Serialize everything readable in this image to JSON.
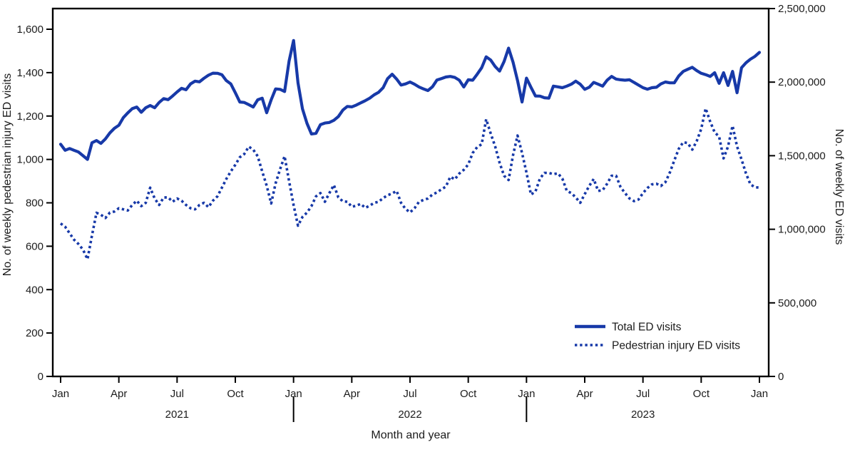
{
  "figure": {
    "line_color": "#1739a8",
    "axis_color": "#000000",
    "text_color": "#1c1c1c"
  },
  "chart_data": {
    "type": "line",
    "x_axis_title": "Month and year",
    "x_unit": "week",
    "x_range": [
      "Jan 2021",
      "Jan 2024"
    ],
    "x_ticks": [
      {
        "week": 0,
        "label": "Jan"
      },
      {
        "week": 13,
        "label": "Apr"
      },
      {
        "week": 26,
        "label": "Jul"
      },
      {
        "week": 39,
        "label": "Oct"
      },
      {
        "week": 52,
        "label": "Jan"
      },
      {
        "week": 65,
        "label": "Apr"
      },
      {
        "week": 78,
        "label": "Jul"
      },
      {
        "week": 91,
        "label": "Oct"
      },
      {
        "week": 104,
        "label": "Jan"
      },
      {
        "week": 117,
        "label": "Apr"
      },
      {
        "week": 130,
        "label": "Jul"
      },
      {
        "week": 143,
        "label": "Oct"
      },
      {
        "week": 156,
        "label": "Jan"
      }
    ],
    "year_labels": [
      {
        "week": 26,
        "label": "2021"
      },
      {
        "week": 78,
        "label": "2022"
      },
      {
        "week": 130,
        "label": "2023"
      }
    ],
    "year_separator_weeks": [
      52,
      104
    ],
    "left_axis": {
      "title": "No. of weekly pedestrian injury ED visits",
      "min": 0,
      "max": 1600,
      "tick_values": [
        0,
        200,
        400,
        600,
        800,
        1000,
        1200,
        1400,
        1600
      ],
      "tick_labels": [
        "0",
        "200",
        "400",
        "600",
        "800",
        "1,000",
        "1,200",
        "1,400",
        "1,600"
      ]
    },
    "right_axis": {
      "title": "No. of weekly ED visits",
      "min": 0,
      "max": 2500000,
      "tick_values": [
        0,
        500000,
        1000000,
        1500000,
        2000000,
        2500000
      ],
      "tick_labels": [
        "0",
        "500,000",
        "1,000,000",
        "1,500,000",
        "2,000,000",
        "2,500,000"
      ]
    },
    "legend": [
      {
        "label": "Total ED visits",
        "style": "solid"
      },
      {
        "label": "Pedestrian injury ED visits",
        "style": "dotted"
      }
    ],
    "series": [
      {
        "name": "Total ED visits",
        "axis": "right",
        "style": "solid",
        "values": [
          1578000,
          1537000,
          1549000,
          1537000,
          1525000,
          1500000,
          1475000,
          1588000,
          1603000,
          1584000,
          1614000,
          1655000,
          1686000,
          1707000,
          1758000,
          1791000,
          1820000,
          1831000,
          1795000,
          1826000,
          1841000,
          1826000,
          1862000,
          1888000,
          1881000,
          1906000,
          1933000,
          1958000,
          1948000,
          1988000,
          2007000,
          2002000,
          2026000,
          2047000,
          2061000,
          2060000,
          2050000,
          2010000,
          1988000,
          1928000,
          1865000,
          1862000,
          1847000,
          1831000,
          1880000,
          1891000,
          1792000,
          1880000,
          1954000,
          1951000,
          1936000,
          2143000,
          2283000,
          1995000,
          1818000,
          1720000,
          1648000,
          1652000,
          1711000,
          1722000,
          1726000,
          1741000,
          1766000,
          1810000,
          1835000,
          1832000,
          1844000,
          1859000,
          1874000,
          1891000,
          1914000,
          1931000,
          1962000,
          2024000,
          2054000,
          2021000,
          1980000,
          1988000,
          2001000,
          1986000,
          1967000,
          1954000,
          1943000,
          1968000,
          2014000,
          2024000,
          2035000,
          2039000,
          2032000,
          2013000,
          1967000,
          2016000,
          2013000,
          2054000,
          2098000,
          2172000,
          2150000,
          2106000,
          2075000,
          2140000,
          2231000,
          2135000,
          2010000,
          1865000,
          2027000,
          1965000,
          1906000,
          1905000,
          1894000,
          1891000,
          1973000,
          1968000,
          1962000,
          1973000,
          1986000,
          2007000,
          1986000,
          1951000,
          1965000,
          1998000,
          1986000,
          1973000,
          2013000,
          2039000,
          2021000,
          2016000,
          2013000,
          2016000,
          1998000,
          1980000,
          1962000,
          1952000,
          1962000,
          1965000,
          1988000,
          2001000,
          1995000,
          1995000,
          2042000,
          2073000,
          2087000,
          2101000,
          2078000,
          2060000,
          2051000,
          2039000,
          2064000,
          1992000,
          2064000,
          1977000,
          2073000,
          1928000,
          2098000,
          2132000,
          2156000,
          2175000,
          2202000
        ]
      },
      {
        "name": "Pedestrian injury ED visits",
        "axis": "left",
        "style": "dotted",
        "values": [
          705,
          690,
          660,
          630,
          610,
          584,
          540,
          650,
          754,
          745,
          730,
          755,
          760,
          775,
          770,
          765,
          790,
          810,
          785,
          800,
          870,
          820,
          790,
          825,
          825,
          805,
          820,
          810,
          790,
          775,
          770,
          790,
          800,
          780,
          810,
          830,
          870,
          910,
          945,
          975,
          1010,
          1025,
          1059,
          1045,
          1015,
          945,
          879,
          797,
          890,
          955,
          1015,
          900,
          790,
          695,
          735,
          755,
          785,
          830,
          845,
          805,
          845,
          882,
          825,
          807,
          805,
          782,
          787,
          795,
          777,
          787,
          800,
          805,
          822,
          835,
          843,
          855,
          800,
          772,
          756,
          775,
          805,
          813,
          820,
          838,
          848,
          862,
          875,
          920,
          908,
          935,
          952,
          977,
          1030,
          1057,
          1070,
          1185,
          1120,
          1060,
          985,
          925,
          905,
          1020,
          1110,
          1030,
          940,
          838,
          852,
          912,
          938,
          938,
          932,
          936,
          912,
          855,
          845,
          825,
          800,
          840,
          878,
          910,
          855,
          858,
          888,
          925,
          925,
          872,
          845,
          820,
          808,
          815,
          845,
          868,
          885,
          888,
          878,
          895,
          940,
          995,
          1049,
          1080,
          1075,
          1045,
          1085,
          1140,
          1235,
          1175,
          1125,
          1105,
          1005,
          1060,
          1155,
          1060,
          1000,
          935,
          885,
          872,
          870
        ]
      }
    ]
  }
}
